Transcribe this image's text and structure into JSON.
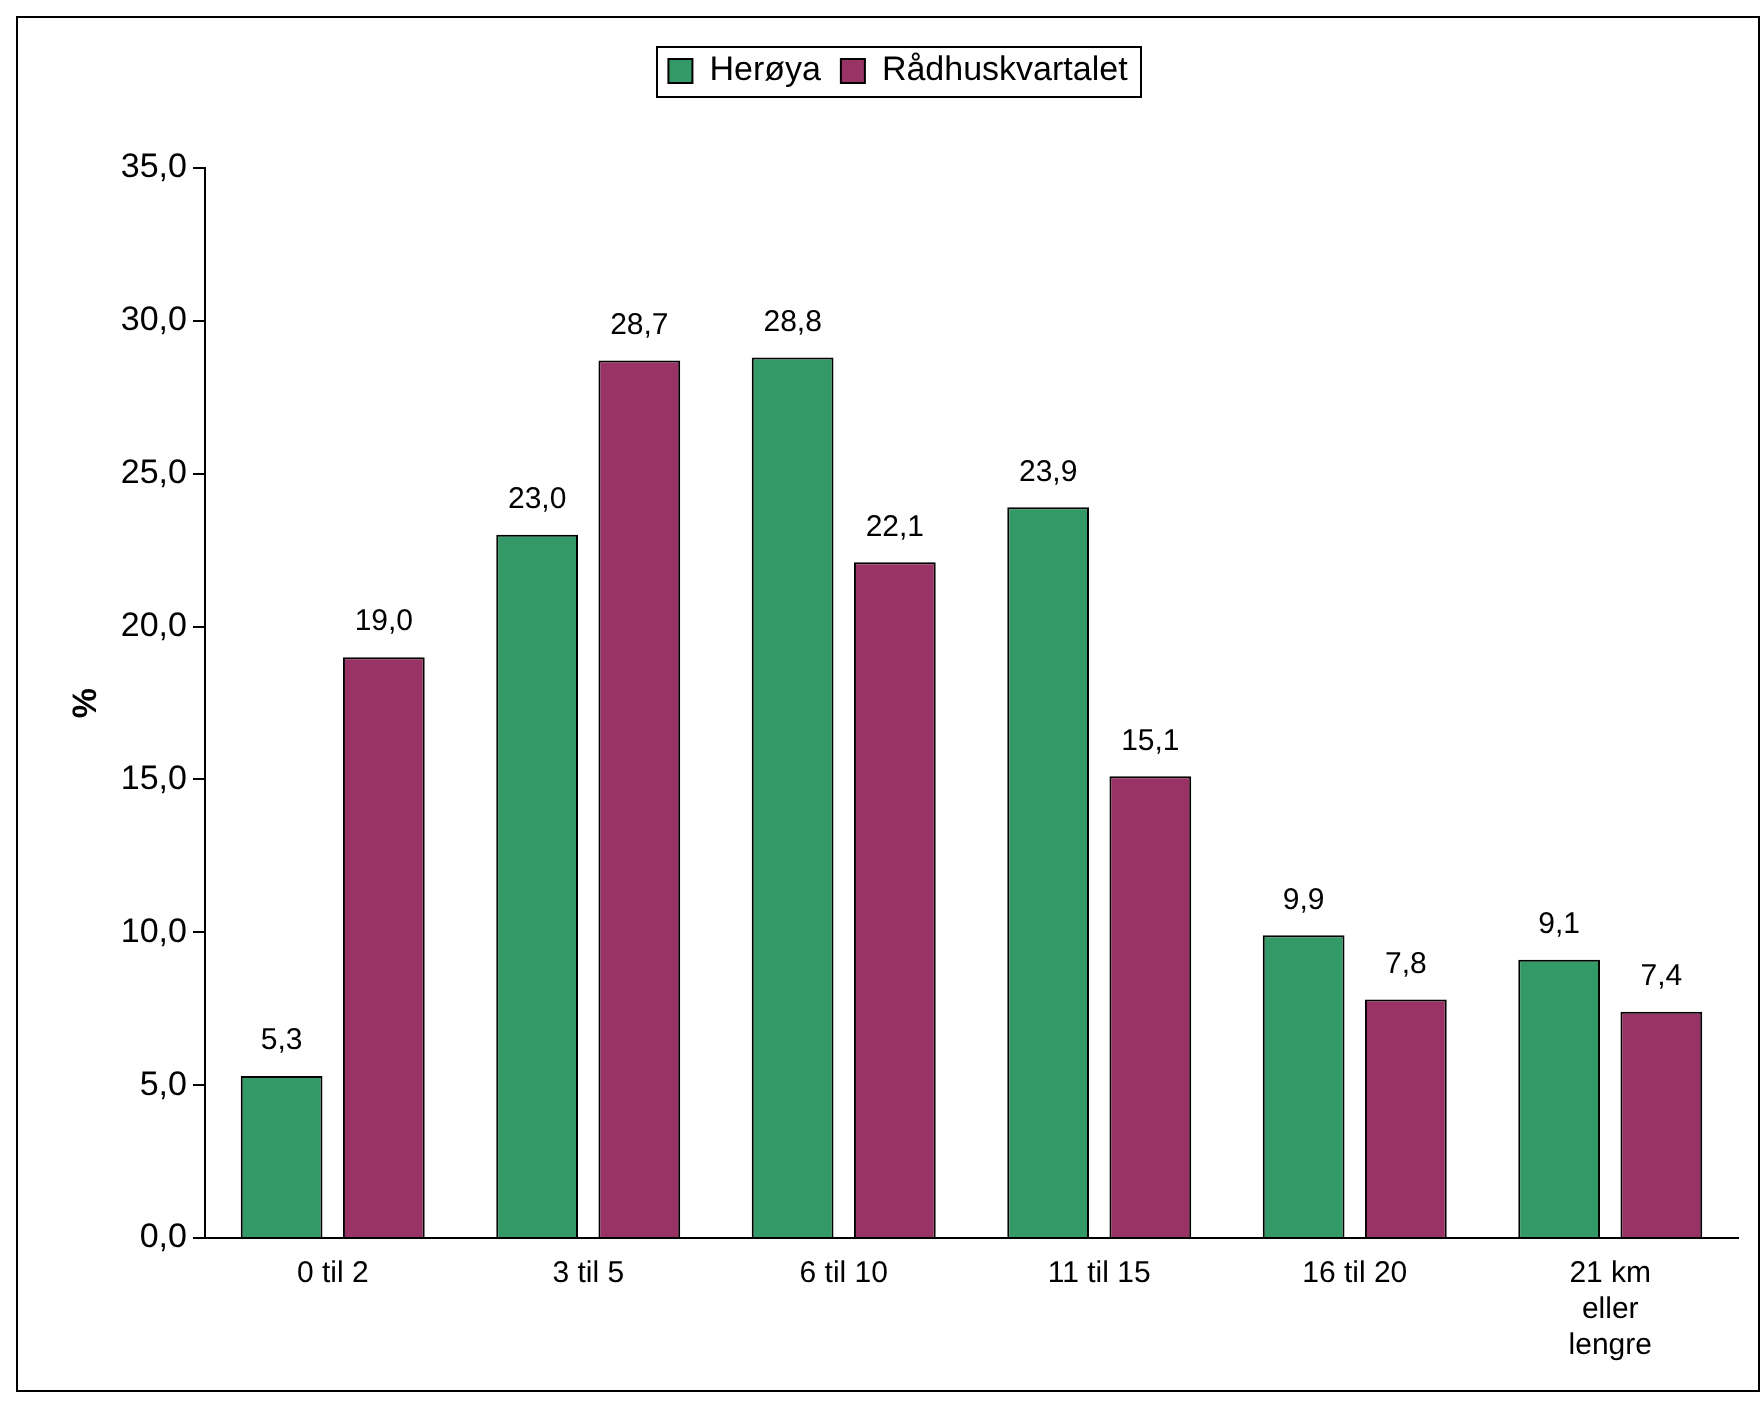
{
  "chart_data": {
    "type": "bar",
    "ylabel": "%",
    "categories": [
      "0 til 2",
      "3 til 5",
      "6 til 10",
      "11 til 15",
      "16 til 20",
      "21 km eller lengre"
    ],
    "series": [
      {
        "name": "Herøya",
        "color": "#339966",
        "values": [
          5.3,
          23.0,
          28.8,
          23.9,
          9.9,
          9.1
        ],
        "value_labels": [
          "5,3",
          "23,0",
          "28,8",
          "23,9",
          "9,9",
          "9,1"
        ]
      },
      {
        "name": "Rådhuskvartalet",
        "color": "#993366",
        "values": [
          19.0,
          28.7,
          22.1,
          15.1,
          7.8,
          7.4
        ],
        "value_labels": [
          "19,0",
          "28,7",
          "22,1",
          "15,1",
          "7,8",
          "7,4"
        ]
      }
    ],
    "ylim": [
      0,
      35
    ],
    "yticks": [
      {
        "value": 0,
        "label": "0,0"
      },
      {
        "value": 5,
        "label": "5,0"
      },
      {
        "value": 10,
        "label": "10,0"
      },
      {
        "value": 15,
        "label": "15,0"
      },
      {
        "value": 20,
        "label": "20,0"
      },
      {
        "value": 25,
        "label": "25,0"
      },
      {
        "value": 30,
        "label": "30,0"
      },
      {
        "value": 35,
        "label": "35,0"
      }
    ],
    "grid": false,
    "legend": "top"
  }
}
